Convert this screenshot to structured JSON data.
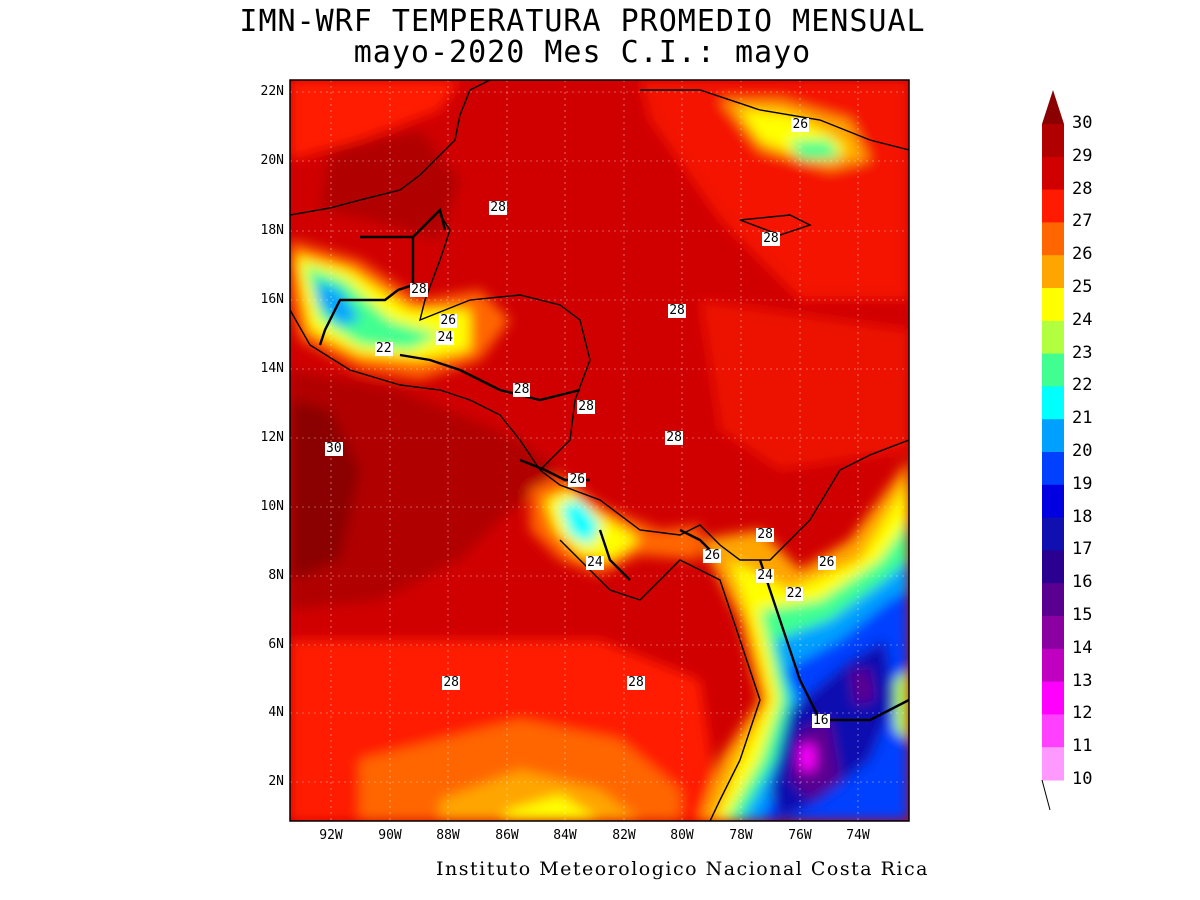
{
  "title_line1": "IMN-WRF  TEMPERATURA PROMEDIO MENSUAL",
  "title_line2": "mayo-2020 Mes C.I.: mayo",
  "footer": "Instituto Meteorologico Nacional Costa Rica",
  "lat_ticks": [
    "22N",
    "20N",
    "18N",
    "16N",
    "14N",
    "12N",
    "10N",
    "8N",
    "6N",
    "4N",
    "2N"
  ],
  "lon_ticks": [
    "92W",
    "90W",
    "88W",
    "86W",
    "84W",
    "82W",
    "80W",
    "78W",
    "76W",
    "74W"
  ],
  "colorbar": {
    "levels": [
      "30",
      "29",
      "28",
      "27",
      "26",
      "25",
      "24",
      "23",
      "22",
      "21",
      "20",
      "19",
      "18",
      "17",
      "16",
      "15",
      "14",
      "13",
      "12",
      "11",
      "10"
    ],
    "colors": [
      "#8b0000",
      "#b00000",
      "#d10000",
      "#ff1a00",
      "#ff6600",
      "#ffa500",
      "#ffff00",
      "#b2ff40",
      "#40ff90",
      "#00ffff",
      "#00a0ff",
      "#0040ff",
      "#0000e0",
      "#1010b0",
      "#2a0090",
      "#5a0090",
      "#8a00a0",
      "#c000c0",
      "#ff00ff",
      "#ff40ff",
      "#ff99ff"
    ]
  },
  "contour_labels": [
    {
      "text": "26",
      "lon": -76.0,
      "lat": 21.1
    },
    {
      "text": "28",
      "lon": -86.3,
      "lat": 18.7
    },
    {
      "text": "28",
      "lon": -77.0,
      "lat": 17.8
    },
    {
      "text": "28",
      "lon": -89.0,
      "lat": 16.3
    },
    {
      "text": "26",
      "lon": -88.0,
      "lat": 15.4
    },
    {
      "text": "24",
      "lon": -88.1,
      "lat": 14.9
    },
    {
      "text": "22",
      "lon": -90.2,
      "lat": 14.6
    },
    {
      "text": "28",
      "lon": -80.2,
      "lat": 15.7
    },
    {
      "text": "28",
      "lon": -85.5,
      "lat": 13.4
    },
    {
      "text": "28",
      "lon": -83.3,
      "lat": 12.9
    },
    {
      "text": "28",
      "lon": -80.3,
      "lat": 12.0
    },
    {
      "text": "30",
      "lon": -91.9,
      "lat": 11.7
    },
    {
      "text": "26",
      "lon": -83.6,
      "lat": 10.8
    },
    {
      "text": "28",
      "lon": -77.2,
      "lat": 9.2
    },
    {
      "text": "26",
      "lon": -79.0,
      "lat": 8.6
    },
    {
      "text": "24",
      "lon": -83.0,
      "lat": 8.4
    },
    {
      "text": "26",
      "lon": -75.1,
      "lat": 8.4
    },
    {
      "text": "24",
      "lon": -77.2,
      "lat": 8.0
    },
    {
      "text": "22",
      "lon": -76.2,
      "lat": 7.5
    },
    {
      "text": "28",
      "lon": -87.9,
      "lat": 4.9
    },
    {
      "text": "28",
      "lon": -81.6,
      "lat": 4.9
    },
    {
      "text": "16",
      "lon": -75.3,
      "lat": 3.8
    }
  ]
}
